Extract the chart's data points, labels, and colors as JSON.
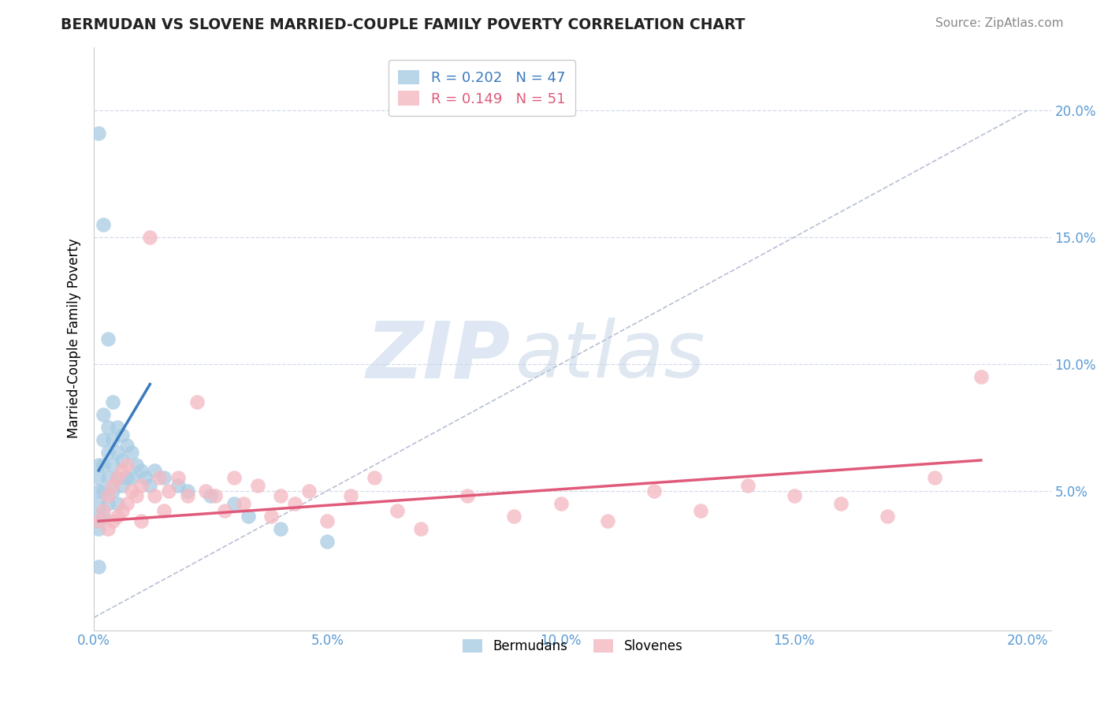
{
  "title": "BERMUDAN VS SLOVENE MARRIED-COUPLE FAMILY POVERTY CORRELATION CHART",
  "source": "Source: ZipAtlas.com",
  "ylabel": "Married-Couple Family Poverty",
  "xlim": [
    0.0,
    0.205
  ],
  "ylim": [
    -0.005,
    0.225
  ],
  "xticks": [
    0.0,
    0.05,
    0.1,
    0.15,
    0.2
  ],
  "yticks": [
    0.05,
    0.1,
    0.15,
    0.2
  ],
  "xtick_labels": [
    "0.0%",
    "5.0%",
    "10.0%",
    "15.0%",
    "20.0%"
  ],
  "ytick_labels": [
    "5.0%",
    "10.0%",
    "15.0%",
    "20.0%"
  ],
  "right_yticks": [
    0.05,
    0.1,
    0.15,
    0.2
  ],
  "right_ytick_labels": [
    "5.0%",
    "10.0%",
    "15.0%",
    "20.0%"
  ],
  "legend_blue": "R = 0.202   N = 47",
  "legend_pink": "R = 0.149   N = 51",
  "blue_scatter_color": "#a8cce4",
  "pink_scatter_color": "#f4b8c1",
  "blue_line_color": "#3a7abf",
  "pink_line_color": "#e05a7a",
  "diag_color": "#b0b8d0",
  "watermark_zip_color": "#c8d8ec",
  "watermark_atlas_color": "#b8cce0",
  "bermudans_x": [
    0.001,
    0.001,
    0.001,
    0.001,
    0.001,
    0.001,
    0.001,
    0.001,
    0.002,
    0.002,
    0.002,
    0.002,
    0.002,
    0.002,
    0.003,
    0.003,
    0.003,
    0.003,
    0.003,
    0.004,
    0.004,
    0.004,
    0.004,
    0.005,
    0.005,
    0.005,
    0.005,
    0.006,
    0.006,
    0.006,
    0.007,
    0.007,
    0.008,
    0.008,
    0.009,
    0.01,
    0.011,
    0.012,
    0.013,
    0.015,
    0.018,
    0.02,
    0.025,
    0.03,
    0.033,
    0.04,
    0.05
  ],
  "bermudans_y": [
    0.191,
    0.06,
    0.055,
    0.05,
    0.045,
    0.04,
    0.035,
    0.02,
    0.155,
    0.08,
    0.07,
    0.06,
    0.05,
    0.04,
    0.11,
    0.075,
    0.065,
    0.055,
    0.045,
    0.085,
    0.07,
    0.06,
    0.05,
    0.075,
    0.065,
    0.055,
    0.045,
    0.072,
    0.062,
    0.052,
    0.068,
    0.055,
    0.065,
    0.055,
    0.06,
    0.058,
    0.055,
    0.052,
    0.058,
    0.055,
    0.052,
    0.05,
    0.048,
    0.045,
    0.04,
    0.035,
    0.03
  ],
  "slovenes_x": [
    0.001,
    0.002,
    0.003,
    0.003,
    0.004,
    0.004,
    0.005,
    0.005,
    0.006,
    0.006,
    0.007,
    0.007,
    0.008,
    0.009,
    0.01,
    0.01,
    0.012,
    0.013,
    0.014,
    0.015,
    0.016,
    0.018,
    0.02,
    0.022,
    0.024,
    0.026,
    0.028,
    0.03,
    0.032,
    0.035,
    0.038,
    0.04,
    0.043,
    0.046,
    0.05,
    0.055,
    0.06,
    0.065,
    0.07,
    0.08,
    0.09,
    0.1,
    0.11,
    0.12,
    0.13,
    0.14,
    0.15,
    0.16,
    0.17,
    0.18,
    0.19
  ],
  "slovenes_y": [
    0.038,
    0.042,
    0.048,
    0.035,
    0.052,
    0.038,
    0.055,
    0.04,
    0.058,
    0.042,
    0.06,
    0.045,
    0.05,
    0.048,
    0.052,
    0.038,
    0.15,
    0.048,
    0.055,
    0.042,
    0.05,
    0.055,
    0.048,
    0.085,
    0.05,
    0.048,
    0.042,
    0.055,
    0.045,
    0.052,
    0.04,
    0.048,
    0.045,
    0.05,
    0.038,
    0.048,
    0.055,
    0.042,
    0.035,
    0.048,
    0.04,
    0.045,
    0.038,
    0.05,
    0.042,
    0.052,
    0.048,
    0.045,
    0.04,
    0.055,
    0.095
  ],
  "blue_line_x": [
    0.001,
    0.012
  ],
  "blue_line_y": [
    0.058,
    0.092
  ],
  "pink_line_x": [
    0.001,
    0.19
  ],
  "pink_line_y": [
    0.038,
    0.062
  ]
}
